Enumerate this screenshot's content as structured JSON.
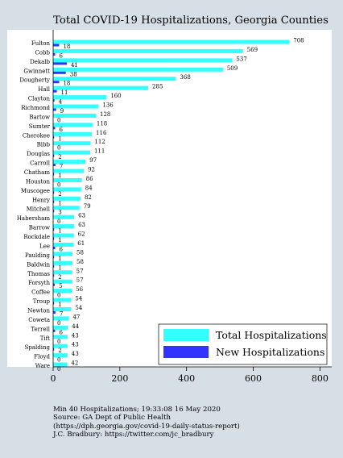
{
  "chart_data": {
    "type": "bar",
    "orientation": "horizontal",
    "title": "Total COVID-19 Hospitalizations, Georgia Counties",
    "xlabel": "",
    "ylabel": "",
    "xlim": [
      0,
      850
    ],
    "xticks": [
      0,
      200,
      400,
      600,
      800
    ],
    "grid": false,
    "legend_position": "bottom-right",
    "categories": [
      "Fulton",
      "Cobb",
      "Dekalb",
      "Gwinnett",
      "Dougherty",
      "Hall",
      "Clayton",
      "Richmond",
      "Bartow",
      "Sumter",
      "Cherokee",
      "Bibb",
      "Douglas",
      "Carroll",
      "Chatham",
      "Houston",
      "Muscogee",
      "Henry",
      "Mitchell",
      "Habersham",
      "Barrow",
      "Rockdale",
      "Lee",
      "Paulding",
      "Baldwin",
      "Thomas",
      "Forsyth",
      "Coffee",
      "Troup",
      "Newton",
      "Coweta",
      "Terrell",
      "Tift",
      "Spalding",
      "Floyd",
      "Ware"
    ],
    "series": [
      {
        "name": "Total Hospitalizations",
        "color": "#33ffff",
        "values": [
          708,
          569,
          537,
          509,
          368,
          285,
          160,
          136,
          128,
          118,
          116,
          112,
          111,
          97,
          92,
          86,
          84,
          82,
          79,
          63,
          63,
          62,
          61,
          58,
          58,
          57,
          57,
          56,
          54,
          54,
          47,
          44,
          43,
          43,
          43,
          42
        ]
      },
      {
        "name": "New Hospitalizations",
        "color": "#3333ff",
        "values": [
          18,
          6,
          41,
          38,
          18,
          11,
          4,
          9,
          0,
          6,
          1,
          0,
          2,
          7,
          1,
          0,
          2,
          1,
          3,
          0,
          1,
          1,
          6,
          1,
          1,
          2,
          5,
          0,
          1,
          7,
          0,
          6,
          0,
          2,
          0,
          0
        ]
      }
    ]
  },
  "notes": [
    "Min 40 Hospitalizations; 19:33:08  16 May 2020",
    "Source: GA Dept of Public Health",
    "(https://dph.georgia.gov/covid-19-daily-status-report)",
    "J.C. Bradbury: https://twitter.com/jc_bradbury"
  ],
  "colors": {
    "frame": "#d6dee6",
    "total": "#33ffff",
    "new": "#3333ff"
  }
}
